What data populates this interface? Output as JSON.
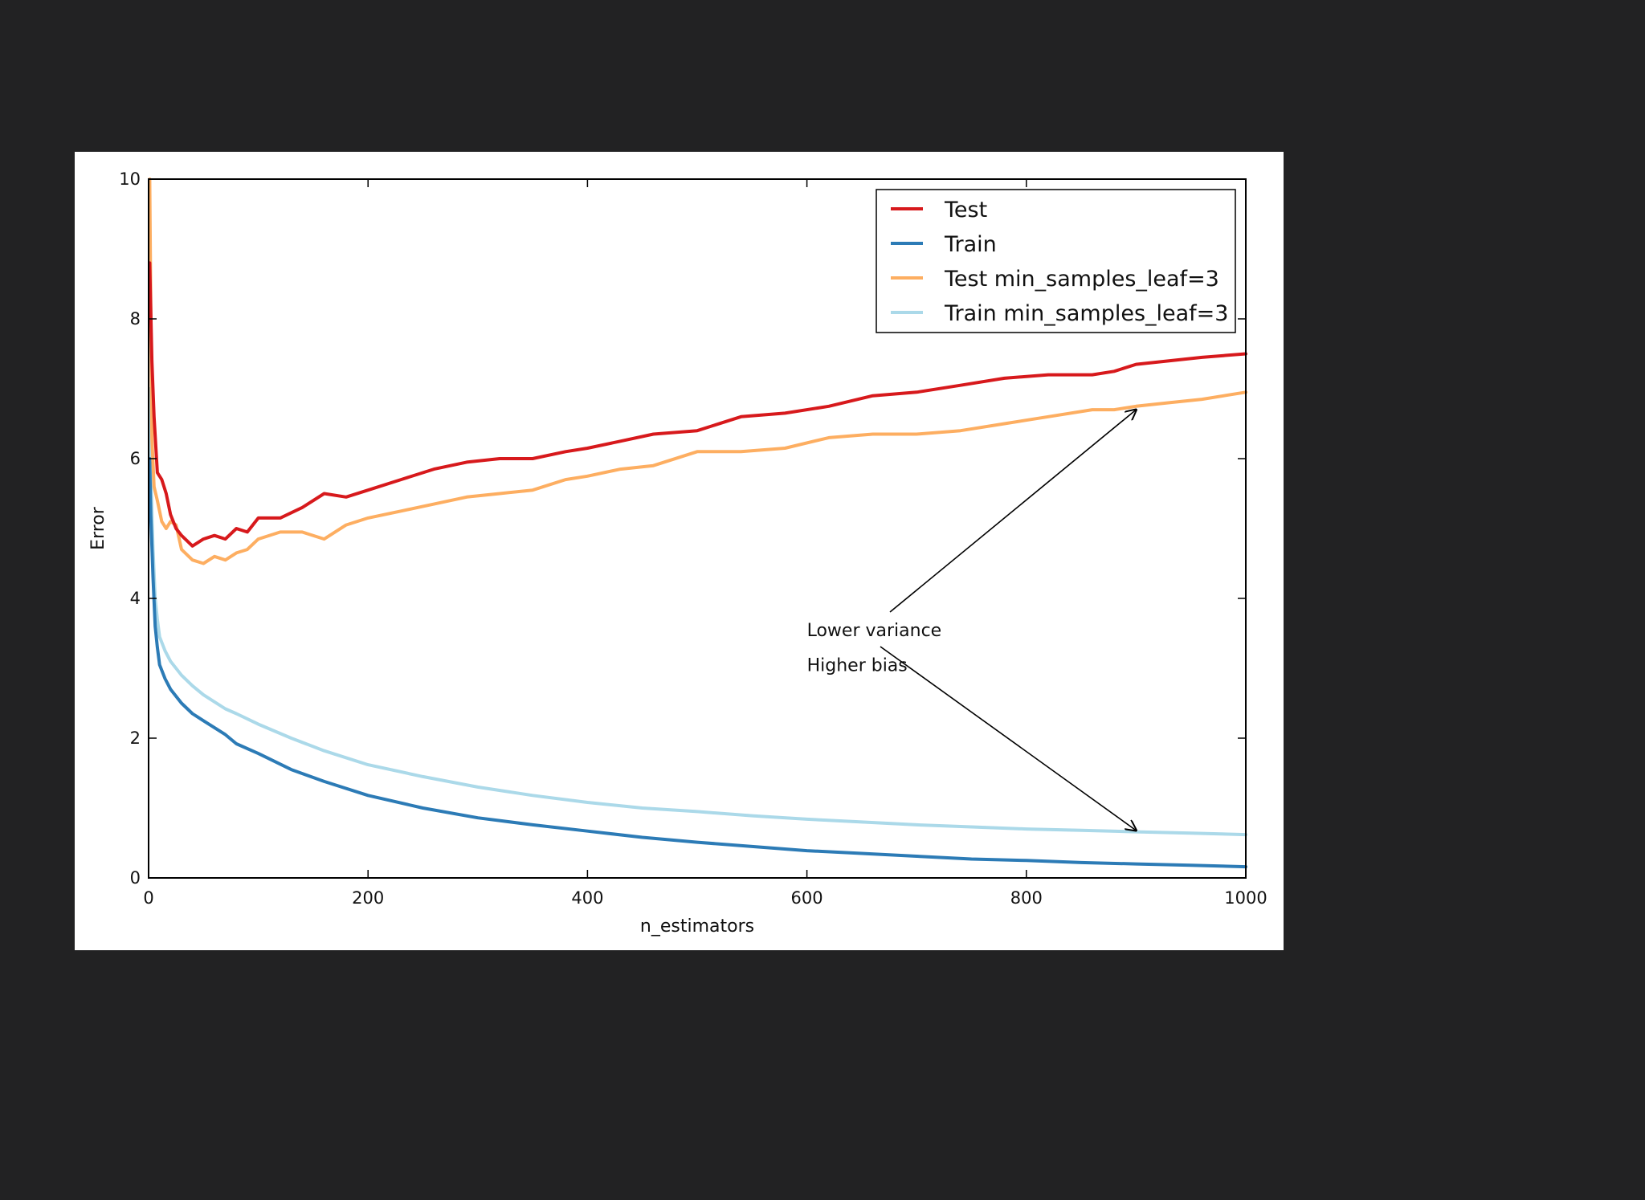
{
  "colors": {
    "background": "#222223",
    "figure": "#ffffff",
    "test": "#d7191c",
    "train": "#2c7bb6",
    "test_msl3": "#fdae61",
    "train_msl3": "#abd9e9"
  },
  "chart_data": {
    "type": "line",
    "title": "",
    "xlabel": "n_estimators",
    "ylabel": "Error",
    "xlim": [
      0,
      1000
    ],
    "ylim": [
      0,
      10
    ],
    "xticks": [
      "0",
      "200",
      "400",
      "600",
      "800",
      "1000"
    ],
    "yticks": [
      "0",
      "2",
      "4",
      "6",
      "8",
      "10"
    ],
    "grid": false,
    "legend_position": "top-right",
    "series": [
      {
        "name": "Test",
        "color": "#d7191c",
        "x": [
          1,
          3,
          5,
          8,
          12,
          16,
          20,
          25,
          30,
          40,
          50,
          60,
          70,
          80,
          90,
          100,
          120,
          140,
          160,
          180,
          200,
          230,
          260,
          290,
          320,
          350,
          380,
          400,
          430,
          460,
          500,
          540,
          580,
          620,
          660,
          700,
          740,
          780,
          820,
          860,
          880,
          900,
          930,
          960,
          1000
        ],
        "y": [
          8.8,
          7.4,
          6.6,
          5.8,
          5.7,
          5.5,
          5.2,
          5.0,
          4.9,
          4.75,
          4.85,
          4.9,
          4.85,
          5.0,
          4.95,
          5.15,
          5.15,
          5.3,
          5.5,
          5.45,
          5.55,
          5.7,
          5.85,
          5.95,
          6.0,
          6.0,
          6.1,
          6.15,
          6.25,
          6.35,
          6.4,
          6.6,
          6.65,
          6.75,
          6.9,
          6.95,
          7.05,
          7.15,
          7.2,
          7.2,
          7.25,
          7.35,
          7.4,
          7.45,
          7.5
        ]
      },
      {
        "name": "Train",
        "color": "#2c7bb6",
        "x": [
          1,
          2,
          4,
          6,
          8,
          10,
          15,
          20,
          30,
          40,
          50,
          70,
          80,
          100,
          130,
          160,
          200,
          250,
          300,
          350,
          400,
          450,
          500,
          550,
          600,
          650,
          700,
          750,
          800,
          850,
          900,
          950,
          1000
        ],
        "y": [
          6.0,
          5.2,
          4.3,
          3.6,
          3.3,
          3.05,
          2.85,
          2.7,
          2.5,
          2.35,
          2.25,
          2.05,
          1.92,
          1.78,
          1.55,
          1.38,
          1.18,
          1.0,
          0.86,
          0.76,
          0.67,
          0.58,
          0.51,
          0.45,
          0.39,
          0.35,
          0.31,
          0.27,
          0.25,
          0.22,
          0.2,
          0.18,
          0.16
        ]
      },
      {
        "name": "Test min_samples_leaf=3",
        "color": "#fdae61",
        "x": [
          1,
          3,
          5,
          8,
          12,
          16,
          20,
          25,
          30,
          40,
          50,
          60,
          70,
          80,
          90,
          100,
          120,
          140,
          160,
          180,
          200,
          230,
          260,
          290,
          320,
          350,
          380,
          400,
          430,
          460,
          500,
          540,
          580,
          620,
          660,
          700,
          740,
          780,
          820,
          860,
          880,
          900,
          930,
          960,
          1000
        ],
        "y": [
          10.0,
          6.3,
          5.6,
          5.4,
          5.1,
          5.0,
          5.1,
          5.05,
          4.7,
          4.55,
          4.5,
          4.6,
          4.55,
          4.65,
          4.7,
          4.85,
          4.95,
          4.95,
          4.85,
          5.05,
          5.15,
          5.25,
          5.35,
          5.45,
          5.5,
          5.55,
          5.7,
          5.75,
          5.85,
          5.9,
          6.1,
          6.1,
          6.15,
          6.3,
          6.35,
          6.35,
          6.4,
          6.5,
          6.6,
          6.7,
          6.7,
          6.75,
          6.8,
          6.85,
          6.95
        ]
      },
      {
        "name": "Train min_samples_leaf=3",
        "color": "#abd9e9",
        "x": [
          1,
          2,
          4,
          6,
          8,
          10,
          15,
          20,
          30,
          40,
          50,
          70,
          80,
          100,
          130,
          160,
          200,
          250,
          300,
          350,
          400,
          450,
          500,
          550,
          600,
          650,
          700,
          750,
          800,
          850,
          900,
          950,
          1000
        ],
        "y": [
          7.0,
          5.8,
          4.7,
          4.0,
          3.7,
          3.45,
          3.25,
          3.1,
          2.9,
          2.75,
          2.62,
          2.42,
          2.35,
          2.2,
          2.0,
          1.82,
          1.62,
          1.45,
          1.3,
          1.18,
          1.08,
          1.0,
          0.95,
          0.89,
          0.84,
          0.8,
          0.76,
          0.73,
          0.7,
          0.68,
          0.66,
          0.64,
          0.62
        ]
      }
    ],
    "annotations": [
      {
        "text": "Lower variance",
        "x": 600,
        "y": 3.55,
        "arrow_to": [
          900,
          6.7
        ]
      },
      {
        "text": "Higher bias",
        "x": 600,
        "y": 3.05,
        "arrow_to": [
          900,
          0.68
        ]
      }
    ]
  }
}
